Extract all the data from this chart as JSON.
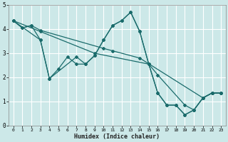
{
  "xlabel": "Humidex (Indice chaleur)",
  "bg_color": "#cce8e8",
  "grid_color": "#ffffff",
  "line_color": "#1a6b6b",
  "series": [
    {
      "x": [
        0,
        1,
        2,
        3,
        10,
        11,
        14,
        21,
        22,
        23
      ],
      "y": [
        4.35,
        4.05,
        4.15,
        3.95,
        3.2,
        3.1,
        2.8,
        1.15,
        1.35,
        1.35
      ]
    },
    {
      "x": [
        0,
        3,
        9,
        15,
        16,
        19,
        20,
        21,
        22,
        23
      ],
      "y": [
        4.35,
        3.9,
        3.0,
        2.55,
        2.1,
        0.85,
        0.65,
        1.15,
        1.35,
        1.35
      ]
    },
    {
      "x": [
        0,
        1,
        2,
        3,
        4,
        5,
        6,
        7,
        8,
        9,
        10,
        11,
        12,
        13,
        14,
        15,
        16,
        17,
        18,
        19,
        20,
        21,
        22,
        23
      ],
      "y": [
        4.35,
        4.05,
        4.15,
        3.55,
        1.95,
        2.35,
        2.85,
        2.55,
        2.55,
        2.9,
        3.55,
        4.15,
        4.35,
        4.7,
        3.9,
        2.55,
        1.35,
        0.85,
        0.85,
        0.45,
        0.65,
        1.15,
        1.35,
        1.35
      ]
    },
    {
      "x": [
        0,
        3,
        4,
        7,
        8,
        9,
        10,
        11,
        12,
        13,
        14,
        15,
        16,
        17,
        18,
        19,
        20,
        21,
        22,
        23
      ],
      "y": [
        4.35,
        3.55,
        1.95,
        2.85,
        2.55,
        2.9,
        3.55,
        4.15,
        4.35,
        4.7,
        3.9,
        2.55,
        1.35,
        0.85,
        0.85,
        0.45,
        0.65,
        1.15,
        1.35,
        1.35
      ]
    }
  ],
  "xlim": [
    -0.5,
    23.5
  ],
  "ylim": [
    0,
    5
  ],
  "yticks": [
    0,
    1,
    2,
    3,
    4,
    5
  ],
  "xticks": [
    0,
    1,
    2,
    3,
    4,
    5,
    6,
    7,
    8,
    9,
    10,
    11,
    12,
    13,
    14,
    15,
    16,
    17,
    18,
    19,
    20,
    21,
    22,
    23
  ]
}
